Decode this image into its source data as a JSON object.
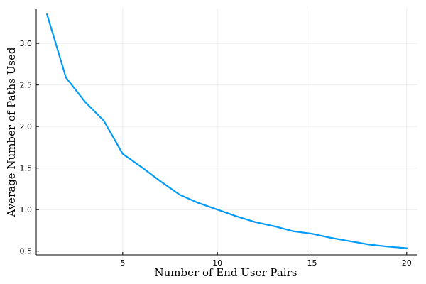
{
  "chart_data": {
    "type": "line",
    "title": "",
    "xlabel": "Number of End User Pairs",
    "ylabel": "Average Number of Paths Used",
    "xlim": [
      0.43,
      20.57
    ],
    "ylim": [
      0.455,
      3.42
    ],
    "xticks": [
      5,
      10,
      15,
      20
    ],
    "xtick_labels": [
      "5",
      "10",
      "15",
      "20"
    ],
    "yticks": [
      0.5,
      1.0,
      1.5,
      2.0,
      2.5,
      3.0
    ],
    "ytick_labels": [
      "0.5",
      "1.0",
      "1.5",
      "2.0",
      "2.5",
      "3.0"
    ],
    "grid": true,
    "legend": "none",
    "series": [
      {
        "color": "#009af9",
        "x": [
          1,
          2,
          3,
          4,
          5,
          6,
          7,
          8,
          9,
          10,
          11,
          12,
          13,
          14,
          15,
          16,
          17,
          18,
          19,
          20
        ],
        "y": [
          3.35,
          2.59,
          2.3,
          2.07,
          1.67,
          1.51,
          1.34,
          1.18,
          1.08,
          1.0,
          0.92,
          0.85,
          0.8,
          0.74,
          0.71,
          0.66,
          0.62,
          0.58,
          0.555,
          0.535
        ]
      }
    ]
  }
}
